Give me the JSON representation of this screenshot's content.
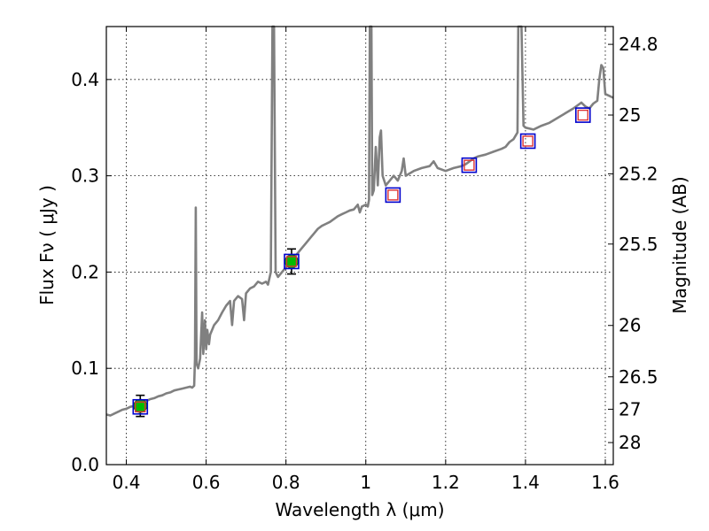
{
  "chart_data": {
    "type": "line",
    "xlabel": "Wavelength  λ (μm)",
    "ylabel_left": "Flux  Fν  ( μJy )",
    "ylabel_right": "Magnitude (AB)",
    "xlim": [
      0.35,
      1.62
    ],
    "ylim": [
      0.0,
      0.455
    ],
    "grid": true,
    "x_ticks": [
      "0.4",
      "0.6",
      "0.8",
      "1",
      "1.2",
      "1.4",
      "1.6"
    ],
    "x_tick_values": [
      0.4,
      0.6,
      0.8,
      1.0,
      1.2,
      1.4,
      1.6
    ],
    "y_ticks": [
      "0.0",
      "0.1",
      "0.2",
      "0.3",
      "0.4"
    ],
    "y_tick_values": [
      0.0,
      0.1,
      0.2,
      0.3,
      0.4
    ],
    "mag_ticks": [
      "24.8",
      "25",
      "25.2",
      "25.5",
      "26",
      "26.5",
      "27",
      "28"
    ],
    "mag_tick_values": [
      24.8,
      25.0,
      25.2,
      25.5,
      26.0,
      26.5,
      27.0,
      28.0
    ],
    "colors": {
      "spectrum": "#808080",
      "observed_fill": "#00bb00",
      "model_box": "#0000cc",
      "model_square": "#dd3333",
      "errorbar": "#000000",
      "grid": "#000000"
    },
    "spectrum": [
      [
        0.35,
        0.052
      ],
      [
        0.36,
        0.051
      ],
      [
        0.37,
        0.053
      ],
      [
        0.38,
        0.055
      ],
      [
        0.39,
        0.057
      ],
      [
        0.4,
        0.058
      ],
      [
        0.41,
        0.06
      ],
      [
        0.42,
        0.061
      ],
      [
        0.43,
        0.062
      ],
      [
        0.44,
        0.064
      ],
      [
        0.45,
        0.066
      ],
      [
        0.46,
        0.068
      ],
      [
        0.47,
        0.069
      ],
      [
        0.48,
        0.071
      ],
      [
        0.49,
        0.072
      ],
      [
        0.5,
        0.074
      ],
      [
        0.51,
        0.075
      ],
      [
        0.52,
        0.077
      ],
      [
        0.53,
        0.078
      ],
      [
        0.54,
        0.079
      ],
      [
        0.55,
        0.08
      ],
      [
        0.56,
        0.081
      ],
      [
        0.565,
        0.08
      ],
      [
        0.57,
        0.082
      ],
      [
        0.572,
        0.11
      ],
      [
        0.574,
        0.267
      ],
      [
        0.576,
        0.105
      ],
      [
        0.58,
        0.1
      ],
      [
        0.585,
        0.11
      ],
      [
        0.59,
        0.158
      ],
      [
        0.593,
        0.115
      ],
      [
        0.597,
        0.15
      ],
      [
        0.6,
        0.12
      ],
      [
        0.603,
        0.14
      ],
      [
        0.607,
        0.125
      ],
      [
        0.61,
        0.135
      ],
      [
        0.62,
        0.145
      ],
      [
        0.63,
        0.15
      ],
      [
        0.64,
        0.158
      ],
      [
        0.65,
        0.165
      ],
      [
        0.66,
        0.17
      ],
      [
        0.665,
        0.145
      ],
      [
        0.67,
        0.17
      ],
      [
        0.68,
        0.175
      ],
      [
        0.69,
        0.172
      ],
      [
        0.695,
        0.15
      ],
      [
        0.7,
        0.178
      ],
      [
        0.71,
        0.183
      ],
      [
        0.72,
        0.185
      ],
      [
        0.73,
        0.19
      ],
      [
        0.74,
        0.188
      ],
      [
        0.75,
        0.19
      ],
      [
        0.755,
        0.187
      ],
      [
        0.762,
        0.2
      ],
      [
        0.766,
        0.455
      ],
      [
        0.77,
        0.455
      ],
      [
        0.774,
        0.2
      ],
      [
        0.78,
        0.195
      ],
      [
        0.79,
        0.2
      ],
      [
        0.8,
        0.205
      ],
      [
        0.81,
        0.21
      ],
      [
        0.82,
        0.215
      ],
      [
        0.83,
        0.22
      ],
      [
        0.84,
        0.225
      ],
      [
        0.85,
        0.23
      ],
      [
        0.86,
        0.235
      ],
      [
        0.87,
        0.24
      ],
      [
        0.88,
        0.245
      ],
      [
        0.89,
        0.248
      ],
      [
        0.9,
        0.25
      ],
      [
        0.91,
        0.252
      ],
      [
        0.92,
        0.255
      ],
      [
        0.93,
        0.258
      ],
      [
        0.94,
        0.26
      ],
      [
        0.95,
        0.262
      ],
      [
        0.96,
        0.264
      ],
      [
        0.97,
        0.265
      ],
      [
        0.98,
        0.27
      ],
      [
        0.985,
        0.262
      ],
      [
        0.99,
        0.268
      ],
      [
        1.0,
        0.27
      ],
      [
        1.005,
        0.268
      ],
      [
        1.008,
        0.275
      ],
      [
        1.01,
        0.455
      ],
      [
        1.014,
        0.455
      ],
      [
        1.016,
        0.28
      ],
      [
        1.02,
        0.285
      ],
      [
        1.025,
        0.33
      ],
      [
        1.03,
        0.29
      ],
      [
        1.035,
        0.34
      ],
      [
        1.038,
        0.347
      ],
      [
        1.042,
        0.3
      ],
      [
        1.05,
        0.29
      ],
      [
        1.06,
        0.295
      ],
      [
        1.07,
        0.3
      ],
      [
        1.08,
        0.295
      ],
      [
        1.09,
        0.305
      ],
      [
        1.095,
        0.318
      ],
      [
        1.1,
        0.3
      ],
      [
        1.12,
        0.305
      ],
      [
        1.14,
        0.308
      ],
      [
        1.16,
        0.31
      ],
      [
        1.17,
        0.315
      ],
      [
        1.18,
        0.308
      ],
      [
        1.2,
        0.305
      ],
      [
        1.22,
        0.308
      ],
      [
        1.24,
        0.31
      ],
      [
        1.25,
        0.312
      ],
      [
        1.26,
        0.315
      ],
      [
        1.27,
        0.318
      ],
      [
        1.28,
        0.32
      ],
      [
        1.3,
        0.322
      ],
      [
        1.32,
        0.325
      ],
      [
        1.34,
        0.328
      ],
      [
        1.35,
        0.33
      ],
      [
        1.36,
        0.335
      ],
      [
        1.37,
        0.338
      ],
      [
        1.38,
        0.345
      ],
      [
        1.382,
        0.455
      ],
      [
        1.39,
        0.455
      ],
      [
        1.395,
        0.352
      ],
      [
        1.4,
        0.35
      ],
      [
        1.42,
        0.348
      ],
      [
        1.44,
        0.352
      ],
      [
        1.46,
        0.355
      ],
      [
        1.48,
        0.36
      ],
      [
        1.5,
        0.365
      ],
      [
        1.52,
        0.37
      ],
      [
        1.54,
        0.376
      ],
      [
        1.55,
        0.372
      ],
      [
        1.56,
        0.37
      ],
      [
        1.57,
        0.375
      ],
      [
        1.58,
        0.378
      ],
      [
        1.585,
        0.4
      ],
      [
        1.59,
        0.415
      ],
      [
        1.595,
        0.412
      ],
      [
        1.6,
        0.385
      ],
      [
        1.61,
        0.383
      ],
      [
        1.62,
        0.381
      ]
    ],
    "observed_points": [
      {
        "x": 0.435,
        "y": 0.061,
        "yerr": 0.011
      },
      {
        "x": 0.814,
        "y": 0.211,
        "yerr": 0.013
      }
    ],
    "model_points": [
      {
        "x": 0.435,
        "y": 0.06
      },
      {
        "x": 0.814,
        "y": 0.211
      },
      {
        "x": 1.068,
        "y": 0.28
      },
      {
        "x": 1.259,
        "y": 0.311
      },
      {
        "x": 1.406,
        "y": 0.336
      },
      {
        "x": 1.544,
        "y": 0.363
      }
    ]
  }
}
